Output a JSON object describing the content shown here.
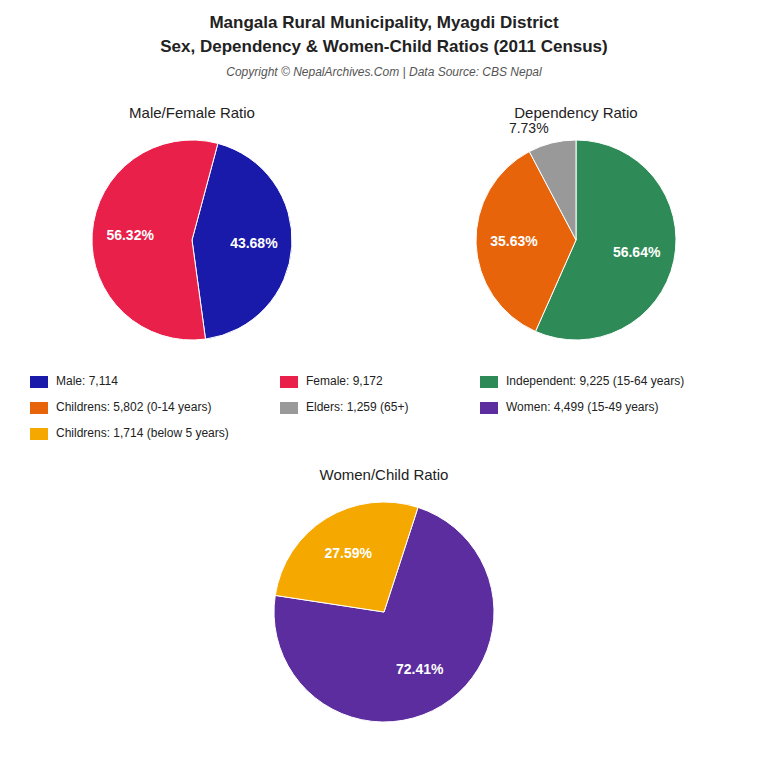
{
  "title": [
    "Mangala Rural Municipality, Myagdi District",
    "Sex, Dependency & Women-Child Ratios (2011 Census)"
  ],
  "subtitle": "Copyright © NepalArchives.Com | Data Source: CBS Nepal",
  "chart_data": [
    {
      "type": "pie",
      "title": "Male/Female Ratio",
      "categories": [
        "Male: 7,114",
        "Female: 9,172"
      ],
      "values": [
        43.68,
        56.32
      ],
      "value_labels": [
        "43.68%",
        "56.32%"
      ],
      "colors": [
        "#1a1aaa",
        "#e8204a"
      ],
      "data_labels": true,
      "legend": "center"
    },
    {
      "type": "pie",
      "title": "Dependency Ratio",
      "categories": [
        "Independent: 9,225 (15-64 years)",
        "Childrens: 5,802 (0-14 years)",
        "Elders: 1,259 (65+)"
      ],
      "values": [
        56.64,
        35.63,
        7.73
      ],
      "value_labels": [
        "56.64%",
        "35.63%",
        "7.73%"
      ],
      "colors": [
        "#2e8b57",
        "#e8640a",
        "#999999"
      ],
      "data_labels": true,
      "legend": "center"
    },
    {
      "type": "pie",
      "title": "Women/Child Ratio",
      "categories": [
        "Women: 4,499 (15-49 years)",
        "Childrens: 1,714 (below 5 years)"
      ],
      "values": [
        72.41,
        27.59
      ],
      "value_labels": [
        "72.41%",
        "27.59%"
      ],
      "colors": [
        "#5b2d9e",
        "#f5a800"
      ],
      "data_labels": true,
      "legend": "center"
    }
  ]
}
